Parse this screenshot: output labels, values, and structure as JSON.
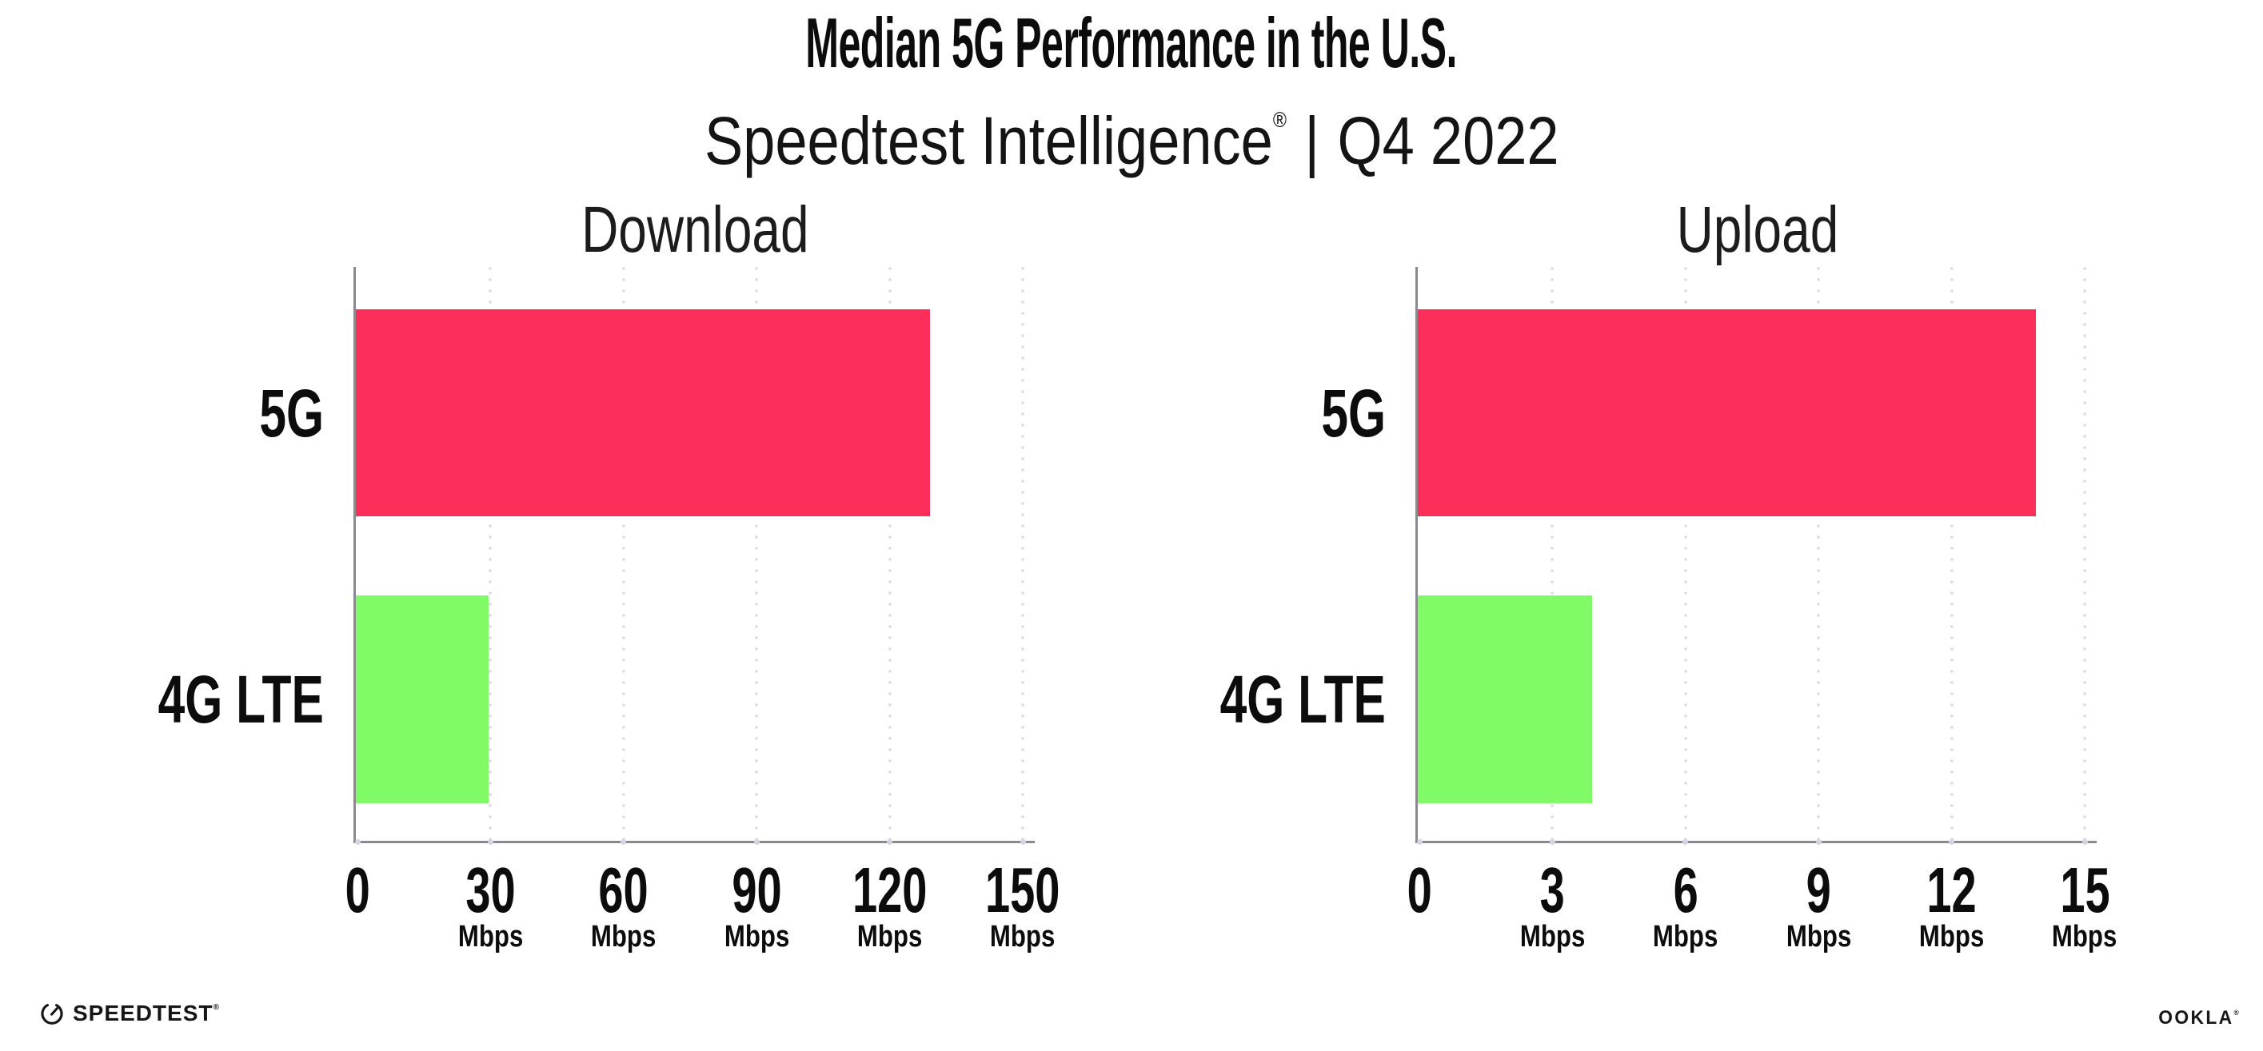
{
  "header": {
    "title": "Median 5G Performance in the U.S.",
    "subtitle": {
      "brand": "Speedtest Intelligence",
      "reg": "®",
      "sep": "|",
      "period": "Q4 2022"
    }
  },
  "chart_data": {
    "type": "bar",
    "orientation": "horizontal",
    "categories": [
      "5G",
      "4G LTE"
    ],
    "bar_colors": {
      "5G": "#fc2e5a",
      "4G LTE": "#80fa66"
    },
    "unit": "Mbps",
    "grid": "vertical-dotted",
    "legend": "none",
    "panels": [
      {
        "title": "Download",
        "ticks": [
          0,
          30,
          60,
          90,
          120,
          150
        ],
        "xlim": [
          0,
          152
        ],
        "series": [
          {
            "name": "5G",
            "value": 129
          },
          {
            "name": "4G LTE",
            "value": 29.5
          }
        ]
      },
      {
        "title": "Upload",
        "ticks": [
          0,
          3,
          6,
          9,
          12,
          15
        ],
        "xlim": [
          0,
          15.2
        ],
        "series": [
          {
            "name": "5G",
            "value": 13.9
          },
          {
            "name": "4G LTE",
            "value": 3.9
          }
        ]
      }
    ]
  },
  "footer": {
    "speedtest": {
      "label": "SPEEDTEST",
      "reg": "®"
    },
    "ookla": {
      "label": "OOKLA",
      "reg": "®"
    }
  }
}
